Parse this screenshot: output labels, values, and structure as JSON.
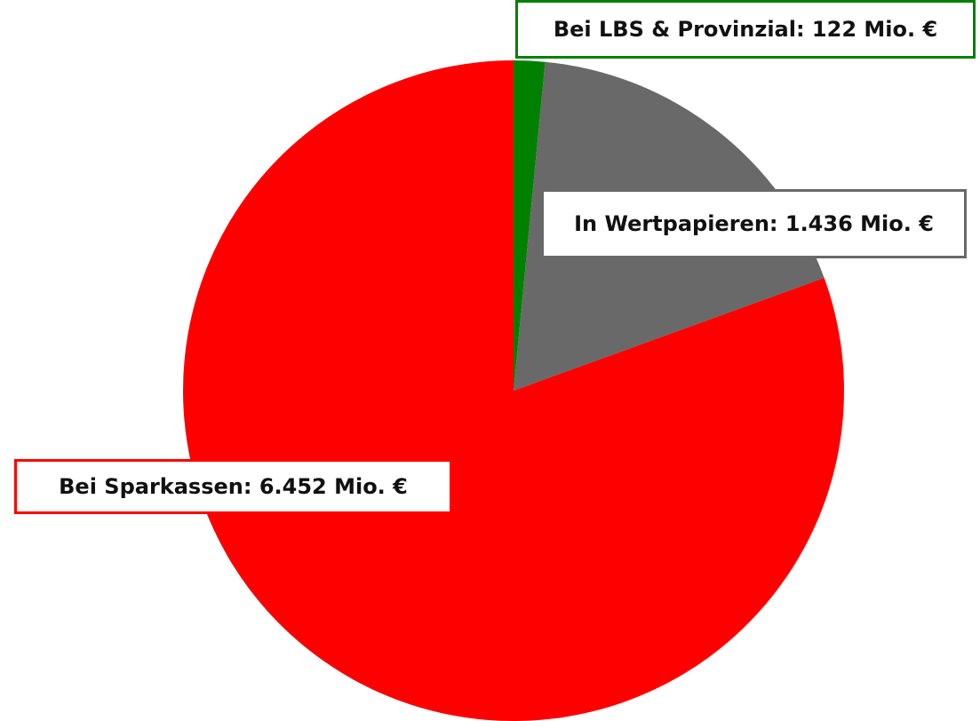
{
  "chart_data": {
    "type": "pie",
    "values": [
      122,
      1436,
      6452
    ],
    "value_labels": [
      "Bei LBS & Provinzial: 122 Mio. €",
      "In Wertpapieren: 1.436 Mio. €",
      "Bei Sparkassen: 6.452 Mio. €"
    ],
    "colors": [
      "#008000",
      "#696969",
      "#ff0000"
    ]
  }
}
